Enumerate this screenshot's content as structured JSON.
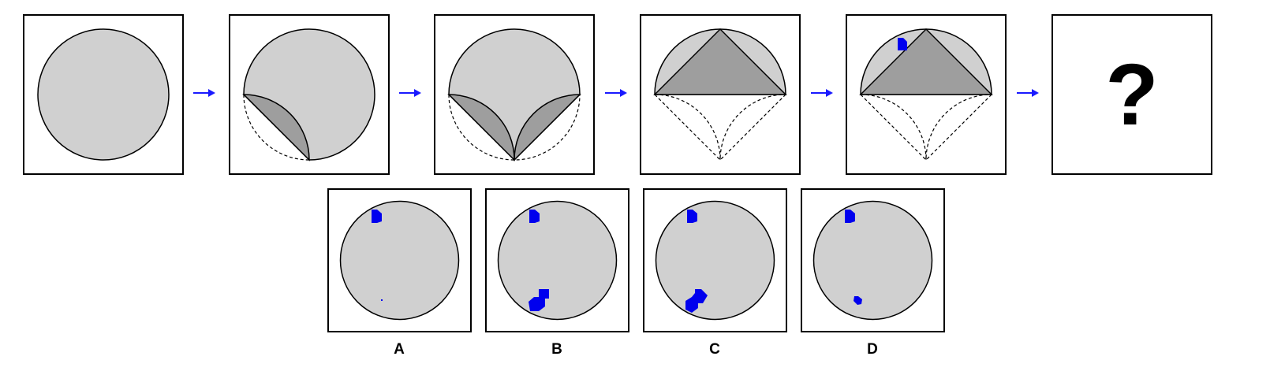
{
  "puzzle": {
    "question_mark": "?",
    "options": [
      {
        "label": "A"
      },
      {
        "label": "B"
      },
      {
        "label": "C"
      },
      {
        "label": "D"
      }
    ]
  },
  "colors": {
    "light_fill": "#d0d0d0",
    "dark_fill": "#9e9e9e",
    "mark": "#0000ee",
    "arrow": "#1a1aff",
    "outline": "#000000"
  }
}
